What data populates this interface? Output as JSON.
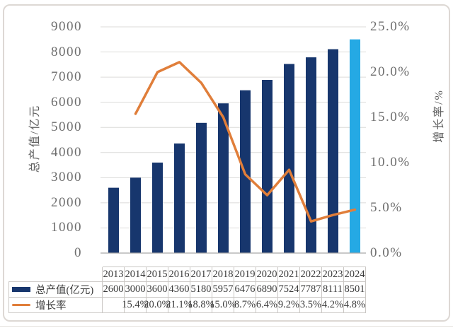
{
  "chart_data": {
    "type": "bar+line",
    "categories": [
      "2013",
      "2014",
      "2015",
      "2016",
      "2017",
      "2018",
      "2019",
      "2020",
      "2021",
      "2022",
      "2023",
      "2024"
    ],
    "series": [
      {
        "name": "总产值(亿元)",
        "type": "bar",
        "values": [
          2600,
          3000,
          3600,
          4360,
          5180,
          5957,
          6476,
          6890,
          7524,
          7787,
          8111,
          8501
        ],
        "color": "#17366d",
        "last_bar_color": "#25a9e4"
      },
      {
        "name": "增长率",
        "type": "line",
        "values": [
          null,
          15.4,
          20.0,
          21.1,
          18.8,
          15.0,
          8.7,
          6.4,
          9.2,
          3.5,
          4.2,
          4.8
        ],
        "color": "#e07e3a",
        "unit": "%"
      }
    ],
    "left_axis": {
      "title": "总产值/亿元",
      "min": 0,
      "max": 9000,
      "step": 1000,
      "tick_labels": [
        "0",
        "1000",
        "2000",
        "3000",
        "4000",
        "5000",
        "6000",
        "7000",
        "8000",
        "9000"
      ]
    },
    "right_axis": {
      "title": "增长率/%",
      "min": 0,
      "max": 25,
      "step": 5,
      "tick_labels": [
        "0.0%",
        "5.0%",
        "10.0%",
        "15.0%",
        "20.0%",
        "25.0%"
      ]
    },
    "grid": true,
    "legend_position": "bottom-table"
  },
  "table": {
    "header_years": [
      "2013",
      "2014",
      "2015",
      "2016",
      "2017",
      "2018",
      "2019",
      "2020",
      "2021",
      "2022",
      "2023",
      "2024"
    ],
    "rows": [
      {
        "label": "总产值(亿元)",
        "swatch": "bar",
        "values": [
          "2600",
          "3000",
          "3600",
          "4360",
          "5180",
          "5957",
          "6476",
          "6890",
          "7524",
          "7787",
          "8111",
          "8501"
        ]
      },
      {
        "label": "增长率",
        "swatch": "line",
        "values": [
          "",
          "15.4%",
          "20.0%",
          "21.1%",
          "18.8%",
          "15.0%",
          "8.7%",
          "6.4%",
          "9.2%",
          "3.5%",
          "4.2%",
          "4.8%"
        ]
      }
    ]
  },
  "colors": {
    "gridline": "#dcdbd9",
    "axis_line": "#a9a9a9",
    "tick_text": "#6e6e6e",
    "table_border": "#cac7c4",
    "table_text": "#3a3a3a"
  }
}
